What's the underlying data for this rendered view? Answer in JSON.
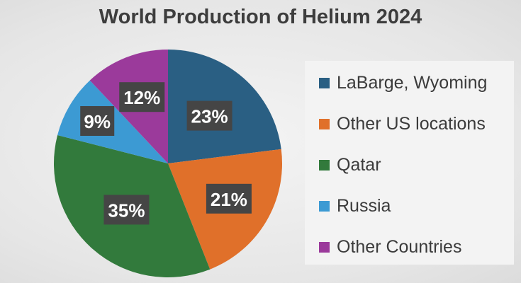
{
  "chart_data": {
    "type": "pie",
    "title": "World Production of Helium 2024",
    "legend_position": "right",
    "categories": [
      "LaBarge, Wyoming",
      "Other US locations",
      "Qatar",
      "Russia",
      "Other Countries"
    ],
    "values": [
      23,
      21,
      35,
      9,
      12
    ],
    "labels": [
      "23%",
      "21%",
      "35%",
      "9%",
      "12%"
    ],
    "colors": [
      "#2a5f83",
      "#e0702a",
      "#327a3c",
      "#3c9ad3",
      "#9b3a9b"
    ]
  }
}
